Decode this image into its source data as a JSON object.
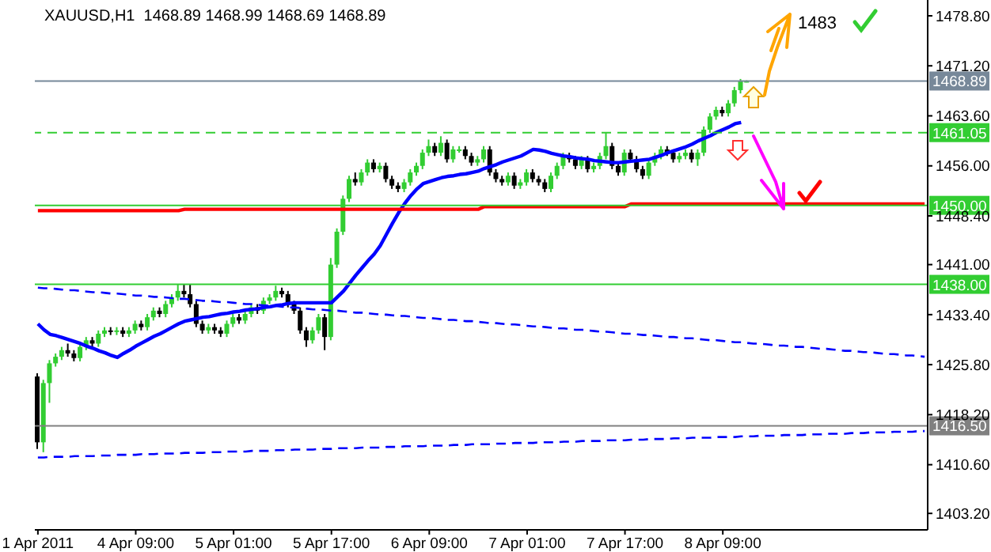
{
  "chart_data": {
    "type": "candlestick",
    "title": "XAUUSD,H1  1468.89 1468.99 1468.69 1468.89",
    "categories": [
      "1 Apr 2011",
      null,
      null,
      null,
      null,
      null,
      null,
      null,
      null,
      null,
      null,
      null,
      null,
      null,
      null,
      null,
      "4 Apr 09:00",
      null,
      null,
      null,
      null,
      null,
      null,
      null,
      null,
      null,
      null,
      null,
      null,
      null,
      null,
      null,
      "5 Apr 01:00",
      null,
      null,
      null,
      null,
      null,
      null,
      null,
      null,
      null,
      null,
      null,
      null,
      null,
      null,
      null,
      "5 Apr 17:00",
      null,
      null,
      null,
      null,
      null,
      null,
      null,
      null,
      null,
      null,
      null,
      null,
      null,
      null,
      null,
      "6 Apr 09:00",
      null,
      null,
      null,
      null,
      null,
      null,
      null,
      null,
      null,
      null,
      null,
      null,
      null,
      null,
      null,
      "7 Apr 01:00",
      null,
      null,
      null,
      null,
      null,
      null,
      null,
      null,
      null,
      null,
      null,
      null,
      null,
      null,
      null,
      "7 Apr 17:00",
      null,
      null,
      null,
      null,
      null,
      null,
      null,
      null,
      null,
      null,
      null,
      null,
      null,
      null,
      null,
      "8 Apr 09:00",
      null,
      null,
      null,
      null,
      null,
      null,
      null,
      null,
      null,
      null,
      null,
      null,
      null,
      null,
      null,
      null,
      null,
      null,
      null,
      null,
      null,
      null,
      null,
      null,
      null,
      null,
      null,
      null,
      null,
      null,
      null,
      null,
      null
    ],
    "ohlc": [
      [
        1424,
        1424.5,
        1413,
        1414
      ],
      [
        1414,
        1423.5,
        1412.5,
        1423
      ],
      [
        1423,
        1426.5,
        1420,
        1426
      ],
      [
        1426,
        1427.5,
        1425.5,
        1427
      ],
      [
        1427,
        1428.5,
        1426.5,
        1428
      ],
      [
        1428,
        1429,
        1427,
        1427.5
      ],
      [
        1427.5,
        1428,
        1426.3,
        1426.8
      ],
      [
        1426.8,
        1429,
        1426.3,
        1428.5
      ],
      [
        1428.5,
        1430,
        1428,
        1429.5
      ],
      [
        1429.5,
        1430,
        1428.5,
        1429
      ],
      [
        1429,
        1431,
        1428.5,
        1430.5
      ],
      [
        1430.5,
        1431.5,
        1430,
        1431
      ],
      [
        1431,
        1431.5,
        1430.3,
        1430.8
      ],
      [
        1430.8,
        1431.5,
        1430.3,
        1431
      ],
      [
        1431,
        1431.5,
        1430,
        1430.5
      ],
      [
        1430.5,
        1431.5,
        1430,
        1431
      ],
      [
        1431,
        1432.5,
        1430.5,
        1432
      ],
      [
        1432,
        1432.5,
        1431,
        1431.5
      ],
      [
        1431.5,
        1433.5,
        1431,
        1433
      ],
      [
        1433,
        1434.5,
        1432.5,
        1434
      ],
      [
        1434,
        1434.5,
        1433,
        1433.5
      ],
      [
        1433.5,
        1435.5,
        1433,
        1435
      ],
      [
        1435,
        1436.5,
        1434.5,
        1436
      ],
      [
        1436,
        1438,
        1435.5,
        1437
      ],
      [
        1437,
        1438,
        1436,
        1436.5
      ],
      [
        1436.5,
        1438,
        1434.5,
        1435
      ],
      [
        1435,
        1435.5,
        1431.5,
        1432
      ],
      [
        1432,
        1432.5,
        1430.5,
        1431
      ],
      [
        1431,
        1432,
        1430.5,
        1431.5
      ],
      [
        1431.5,
        1432,
        1430.5,
        1431
      ],
      [
        1431,
        1431.5,
        1430,
        1430.5
      ],
      [
        1430.5,
        1432.5,
        1430,
        1432
      ],
      [
        1432,
        1433.5,
        1431.5,
        1433
      ],
      [
        1433,
        1433.5,
        1432,
        1432.5
      ],
      [
        1432.5,
        1434,
        1432,
        1433.5
      ],
      [
        1433.5,
        1435,
        1433,
        1434.5
      ],
      [
        1434.5,
        1435,
        1433.5,
        1434
      ],
      [
        1434,
        1436,
        1433.5,
        1435.5
      ],
      [
        1435.5,
        1436.5,
        1435,
        1436
      ],
      [
        1436,
        1437.8,
        1435.5,
        1437
      ],
      [
        1437,
        1437.5,
        1436,
        1436.5
      ],
      [
        1436.5,
        1437,
        1434.5,
        1435
      ],
      [
        1435,
        1435.5,
        1433.5,
        1434
      ],
      [
        1434,
        1434.5,
        1430.5,
        1431
      ],
      [
        1431,
        1431.5,
        1428.5,
        1429.5
      ],
      [
        1429.5,
        1431.5,
        1429,
        1431
      ],
      [
        1431,
        1433.5,
        1430.5,
        1433
      ],
      [
        1433,
        1433.5,
        1428,
        1430
      ],
      [
        1430,
        1442,
        1429.5,
        1441
      ],
      [
        1441,
        1446.5,
        1440.5,
        1446
      ],
      [
        1446,
        1451.5,
        1445.5,
        1451
      ],
      [
        1451,
        1454.5,
        1450.5,
        1454
      ],
      [
        1454,
        1455,
        1453,
        1453.5
      ],
      [
        1453.5,
        1455.5,
        1453,
        1455
      ],
      [
        1455,
        1457,
        1454.5,
        1456.5
      ],
      [
        1456.5,
        1457,
        1455,
        1455.5
      ],
      [
        1455.5,
        1456.5,
        1455,
        1456
      ],
      [
        1456,
        1456.5,
        1453.5,
        1454
      ],
      [
        1454,
        1454.5,
        1452.5,
        1453
      ],
      [
        1453,
        1453.5,
        1452,
        1452.5
      ],
      [
        1452.5,
        1454,
        1452,
        1453.5
      ],
      [
        1453.5,
        1455.5,
        1453,
        1455
      ],
      [
        1455,
        1456.5,
        1454.5,
        1456
      ],
      [
        1456,
        1458.5,
        1455.5,
        1458
      ],
      [
        1458,
        1460,
        1457.5,
        1459
      ],
      [
        1459,
        1459.5,
        1457.5,
        1458
      ],
      [
        1458,
        1460.5,
        1457.5,
        1459.5
      ],
      [
        1459.5,
        1460,
        1456.5,
        1457
      ],
      [
        1457,
        1459,
        1456.5,
        1458.5
      ],
      [
        1458.5,
        1459,
        1458,
        1458.5
      ],
      [
        1458.5,
        1459,
        1457,
        1457.5
      ],
      [
        1457.5,
        1458,
        1456,
        1456.5
      ],
      [
        1456.5,
        1457.5,
        1456,
        1457
      ],
      [
        1457,
        1459,
        1456.5,
        1458.5
      ],
      [
        1458.5,
        1459,
        1454.5,
        1455
      ],
      [
        1455,
        1455.5,
        1453.5,
        1454
      ],
      [
        1454,
        1454.5,
        1453,
        1453.5
      ],
      [
        1453.5,
        1455,
        1453,
        1454.5
      ],
      [
        1454.5,
        1455,
        1452.5,
        1453
      ],
      [
        1453,
        1454,
        1452.5,
        1453.5
      ],
      [
        1453.5,
        1455.5,
        1453,
        1455
      ],
      [
        1455,
        1455.5,
        1453.5,
        1454
      ],
      [
        1454,
        1454.5,
        1453,
        1453.5
      ],
      [
        1453.5,
        1454,
        1452,
        1452.5
      ],
      [
        1452.5,
        1455,
        1452,
        1454.5
      ],
      [
        1454.5,
        1456.5,
        1454,
        1456
      ],
      [
        1456,
        1458,
        1455.5,
        1457.5
      ],
      [
        1457.5,
        1458,
        1456.5,
        1457
      ],
      [
        1457,
        1457.5,
        1455.5,
        1456
      ],
      [
        1456,
        1457.5,
        1455.5,
        1457
      ],
      [
        1457,
        1457.5,
        1455,
        1455.5
      ],
      [
        1455.5,
        1456.5,
        1455,
        1456
      ],
      [
        1456,
        1458,
        1455.5,
        1457.5
      ],
      [
        1457.5,
        1461,
        1457,
        1459
      ],
      [
        1459,
        1459.5,
        1455.5,
        1456
      ],
      [
        1456,
        1456.5,
        1454.5,
        1455
      ],
      [
        1455,
        1458.5,
        1454.5,
        1458
      ],
      [
        1458,
        1458.5,
        1456.5,
        1457
      ],
      [
        1457,
        1457.5,
        1455,
        1455.5
      ],
      [
        1455.5,
        1456,
        1454,
        1454.5
      ],
      [
        1454.5,
        1457,
        1454,
        1456.5
      ],
      [
        1456.5,
        1458,
        1456,
        1457.5
      ],
      [
        1457.5,
        1459,
        1457,
        1458.5
      ],
      [
        1458.5,
        1459,
        1457.5,
        1458
      ],
      [
        1458,
        1458.5,
        1456.5,
        1457
      ],
      [
        1457,
        1458,
        1456.5,
        1457.5
      ],
      [
        1457.5,
        1458.5,
        1457,
        1458
      ],
      [
        1458,
        1458.5,
        1456.5,
        1457
      ],
      [
        1457,
        1458.5,
        1456,
        1458
      ],
      [
        1458,
        1462,
        1457.5,
        1461.5
      ],
      [
        1461.5,
        1464,
        1461,
        1463.5
      ],
      [
        1463.5,
        1465,
        1463,
        1464.5
      ],
      [
        1464.5,
        1465,
        1463.5,
        1464
      ],
      [
        1464,
        1466,
        1463.5,
        1465.5
      ],
      [
        1465.5,
        1468,
        1465,
        1467.5
      ],
      [
        1467.5,
        1469.2,
        1467,
        1468.89
      ],
      [
        1468.89,
        1468.99,
        1468.69,
        1468.89
      ],
      null,
      null,
      null,
      null,
      null,
      null,
      null,
      null,
      null,
      null,
      null,
      null,
      null,
      null,
      null,
      null,
      null,
      null,
      null,
      null,
      null,
      null,
      null,
      null,
      null,
      null,
      null,
      null,
      null
    ],
    "series": [
      {
        "type": "line",
        "color": "#0000ff",
        "values": [
          1432.0,
          1431.1,
          1430.4,
          1430.2,
          1429.9,
          1429.6,
          1429.3,
          1429.0,
          1428.6,
          1428.3,
          1427.9,
          1427.6,
          1427.2,
          1426.9,
          1427.5,
          1428.0,
          1428.6,
          1429.1,
          1429.6,
          1430.1,
          1430.5,
          1431.0,
          1431.5,
          1432.0,
          1432.4,
          1432.6,
          1432.8,
          1433.0,
          1433.1,
          1433.3,
          1433.5,
          1433.6,
          1433.8,
          1433.9,
          1434.1,
          1434.2,
          1434.3,
          1434.5,
          1434.6,
          1434.8,
          1434.9,
          1435.1,
          1435.2,
          1435.2,
          1435.2,
          1435.2,
          1435.2,
          1435.2,
          1435.2,
          1436.1,
          1437.0,
          1438.2,
          1439.4,
          1440.5,
          1441.6,
          1442.6,
          1443.9,
          1445.6,
          1447.3,
          1448.9,
          1450.3,
          1451.5,
          1452.5,
          1453.3,
          1453.6,
          1453.9,
          1454.2,
          1454.4,
          1454.5,
          1454.7,
          1454.8,
          1455.0,
          1455.2,
          1455.6,
          1455.9,
          1456.2,
          1456.6,
          1456.9,
          1457.2,
          1457.5,
          1458.0,
          1458.5,
          1458.4,
          1458.2,
          1457.9,
          1457.7,
          1457.5,
          1457.4,
          1457.2,
          1457.1,
          1457.0,
          1456.8,
          1456.7,
          1456.6,
          1456.5,
          1456.5,
          1456.6,
          1456.7,
          1456.8,
          1456.9,
          1457.0,
          1457.3,
          1457.6,
          1458.0,
          1458.3,
          1458.6,
          1458.9,
          1459.3,
          1459.8,
          1460.2,
          1460.6,
          1461.1,
          1461.5,
          1461.9,
          1462.4,
          1462.6,
          null,
          null,
          null,
          null,
          null,
          null,
          null,
          null,
          null,
          null,
          null,
          null,
          null,
          null,
          null,
          null,
          null,
          null,
          null,
          null,
          null,
          null,
          null,
          null,
          null,
          null,
          null,
          null,
          null,
          null
        ]
      },
      {
        "type": "line",
        "color": "#ff0000",
        "values": [
          1449.2,
          1449.2,
          1449.2,
          1449.2,
          1449.2,
          1449.2,
          1449.2,
          1449.2,
          1449.2,
          1449.2,
          1449.2,
          1449.2,
          1449.2,
          1449.2,
          1449.2,
          1449.2,
          1449.2,
          1449.2,
          1449.2,
          1449.2,
          1449.2,
          1449.2,
          1449.2,
          1449.2,
          1449.4,
          1449.4,
          1449.4,
          1449.4,
          1449.4,
          1449.4,
          1449.4,
          1449.4,
          1449.4,
          1449.4,
          1449.4,
          1449.4,
          1449.4,
          1449.4,
          1449.4,
          1449.4,
          1449.4,
          1449.4,
          1449.4,
          1449.4,
          1449.4,
          1449.4,
          1449.4,
          1449.4,
          1449.4,
          1449.4,
          1449.4,
          1449.4,
          1449.4,
          1449.4,
          1449.4,
          1449.4,
          1449.4,
          1449.4,
          1449.4,
          1449.4,
          1449.4,
          1449.4,
          1449.4,
          1449.4,
          1449.4,
          1449.4,
          1449.4,
          1449.4,
          1449.4,
          1449.4,
          1449.4,
          1449.4,
          1449.4,
          1449.8,
          1449.8,
          1449.8,
          1449.8,
          1449.8,
          1449.8,
          1449.8,
          1449.8,
          1449.8,
          1449.8,
          1449.8,
          1449.8,
          1449.8,
          1449.8,
          1449.8,
          1449.8,
          1449.8,
          1449.8,
          1449.8,
          1449.8,
          1449.8,
          1449.8,
          1449.8,
          1449.8,
          1450.2,
          1450.2,
          1450.2,
          1450.2,
          1450.2,
          1450.2,
          1450.2,
          1450.2,
          1450.2,
          1450.2,
          1450.2,
          1450.2,
          1450.2,
          1450.2,
          1450.2,
          1450.2,
          1450.2,
          1450.2,
          1450.2,
          1450.2,
          1450.2,
          1450.2,
          1450.2,
          1450.2,
          1450.2,
          1450.2,
          1450.2,
          1450.2,
          1450.2,
          1450.2,
          1450.2,
          1450.2,
          1450.2,
          1450.2,
          1450.2,
          1450.2,
          1450.2,
          1450.2,
          1450.2,
          1450.2,
          1450.2,
          1450.2,
          1450.2,
          1450.2,
          1450.2,
          1450.2,
          1450.2,
          1450.2,
          1450.2
        ]
      },
      {
        "type": "line",
        "color": "#0000ff",
        "line_style": "dashed",
        "values": [
          1437.5,
          1437.4,
          1437.4,
          1437.3,
          1437.2,
          1437.1,
          1437.1,
          1437.0,
          1436.9,
          1436.8,
          1436.8,
          1436.7,
          1436.6,
          1436.6,
          1436.5,
          1436.4,
          1436.3,
          1436.3,
          1436.2,
          1436.1,
          1436.1,
          1436.0,
          1435.9,
          1435.8,
          1435.8,
          1435.7,
          1435.6,
          1435.5,
          1435.5,
          1435.4,
          1435.3,
          1435.3,
          1435.2,
          1435.1,
          1435.0,
          1435.0,
          1434.9,
          1434.8,
          1434.8,
          1434.7,
          1434.6,
          1434.5,
          1434.5,
          1434.4,
          1434.3,
          1434.2,
          1434.2,
          1434.1,
          1434.0,
          1434.0,
          1433.9,
          1433.8,
          1433.7,
          1433.7,
          1433.6,
          1433.5,
          1433.4,
          1433.4,
          1433.3,
          1433.2,
          1433.2,
          1433.1,
          1433.0,
          1432.9,
          1432.9,
          1432.8,
          1432.7,
          1432.6,
          1432.6,
          1432.5,
          1432.4,
          1432.4,
          1432.3,
          1432.2,
          1432.1,
          1432.1,
          1432.0,
          1431.9,
          1431.9,
          1431.8,
          1431.7,
          1431.6,
          1431.6,
          1431.5,
          1431.4,
          1431.3,
          1431.3,
          1431.2,
          1431.1,
          1431.1,
          1431.0,
          1430.9,
          1430.8,
          1430.8,
          1430.7,
          1430.6,
          1430.5,
          1430.5,
          1430.4,
          1430.3,
          1430.3,
          1430.2,
          1430.1,
          1430.0,
          1430.0,
          1429.9,
          1429.8,
          1429.8,
          1429.7,
          1429.6,
          1429.5,
          1429.5,
          1429.4,
          1429.3,
          1429.2,
          1429.2,
          1429.1,
          1429.0,
          1429.0,
          1428.9,
          1428.8,
          1428.7,
          1428.7,
          1428.6,
          1428.5,
          1428.5,
          1428.4,
          1428.3,
          1428.2,
          1428.2,
          1428.1,
          1428.0,
          1427.9,
          1427.9,
          1427.8,
          1427.7,
          1427.7,
          1427.6,
          1427.5,
          1427.4,
          1427.4,
          1427.3,
          1427.2,
          1427.2,
          1427.1,
          1427.0
        ]
      },
      {
        "type": "line",
        "color": "#0000ff",
        "line_style": "dashed",
        "values": [
          1411.7,
          1411.7,
          1411.8,
          1411.8,
          1411.8,
          1411.8,
          1411.9,
          1411.9,
          1411.9,
          1411.9,
          1412.0,
          1412.0,
          1412.0,
          1412.1,
          1412.1,
          1412.1,
          1412.1,
          1412.2,
          1412.2,
          1412.2,
          1412.3,
          1412.3,
          1412.3,
          1412.3,
          1412.4,
          1412.4,
          1412.4,
          1412.4,
          1412.5,
          1412.5,
          1412.5,
          1412.6,
          1412.6,
          1412.6,
          1412.6,
          1412.7,
          1412.7,
          1412.7,
          1412.7,
          1412.8,
          1412.8,
          1412.8,
          1412.9,
          1412.9,
          1412.9,
          1412.9,
          1413.0,
          1413.0,
          1413.0,
          1413.1,
          1413.1,
          1413.1,
          1413.1,
          1413.2,
          1413.2,
          1413.2,
          1413.2,
          1413.3,
          1413.3,
          1413.3,
          1413.4,
          1413.4,
          1413.4,
          1413.4,
          1413.5,
          1413.5,
          1413.5,
          1413.5,
          1413.6,
          1413.6,
          1413.6,
          1413.7,
          1413.7,
          1413.7,
          1413.7,
          1413.8,
          1413.8,
          1413.8,
          1413.9,
          1413.9,
          1413.9,
          1413.9,
          1414.0,
          1414.0,
          1414.0,
          1414.0,
          1414.1,
          1414.1,
          1414.1,
          1414.2,
          1414.2,
          1414.2,
          1414.2,
          1414.3,
          1414.3,
          1414.3,
          1414.3,
          1414.4,
          1414.4,
          1414.4,
          1414.5,
          1414.5,
          1414.5,
          1414.5,
          1414.6,
          1414.6,
          1414.6,
          1414.7,
          1414.7,
          1414.7,
          1414.7,
          1414.8,
          1414.8,
          1414.8,
          1414.8,
          1414.9,
          1414.9,
          1414.9,
          1415.0,
          1415.0,
          1415.0,
          1415.0,
          1415.1,
          1415.1,
          1415.1,
          1415.1,
          1415.2,
          1415.2,
          1415.2,
          1415.3,
          1415.3,
          1415.3,
          1415.3,
          1415.4,
          1415.4,
          1415.4,
          1415.5,
          1415.5,
          1415.5,
          1415.5,
          1415.6,
          1415.6,
          1415.6,
          1415.6,
          1415.7,
          1415.7
        ]
      }
    ],
    "ylim": [
      1400.7,
      1481.2
    ],
    "yticks": [
      {
        "value": 1403.2,
        "label": "1403.20"
      },
      {
        "value": 1410.6,
        "label": "1410.60"
      },
      {
        "value": 1418.2,
        "label": "1418.20"
      },
      {
        "value": 1425.8,
        "label": "1425.80"
      },
      {
        "value": 1433.4,
        "label": "1433.40"
      },
      {
        "value": 1441,
        "label": "1441.00"
      },
      {
        "value": 1448.4,
        "label": "1448.40"
      },
      {
        "value": 1456,
        "label": "1456.00"
      },
      {
        "value": 1463.6,
        "label": "1463.60"
      },
      {
        "value": 1471.2,
        "label": "1471.20"
      },
      {
        "value": 1478.8,
        "label": "1478.80"
      }
    ],
    "ref_lines": [
      {
        "axis": "y",
        "value": 1468.89,
        "label": "1468.89",
        "color": "#778899"
      },
      {
        "axis": "y",
        "value": 1461.05,
        "label": "1461.05",
        "color": "#32cd32",
        "line_style": "dashed"
      },
      {
        "axis": "y",
        "value": 1450,
        "label": "1450.00",
        "color": "#32cd32"
      },
      {
        "axis": "y",
        "value": 1438,
        "label": "1438.00",
        "color": "#32cd32"
      },
      {
        "axis": "y",
        "value": 1416.5,
        "label": "1416.50",
        "color": "#808080"
      }
    ],
    "annotations": [
      "1483"
    ],
    "grid": false,
    "legend": false
  }
}
